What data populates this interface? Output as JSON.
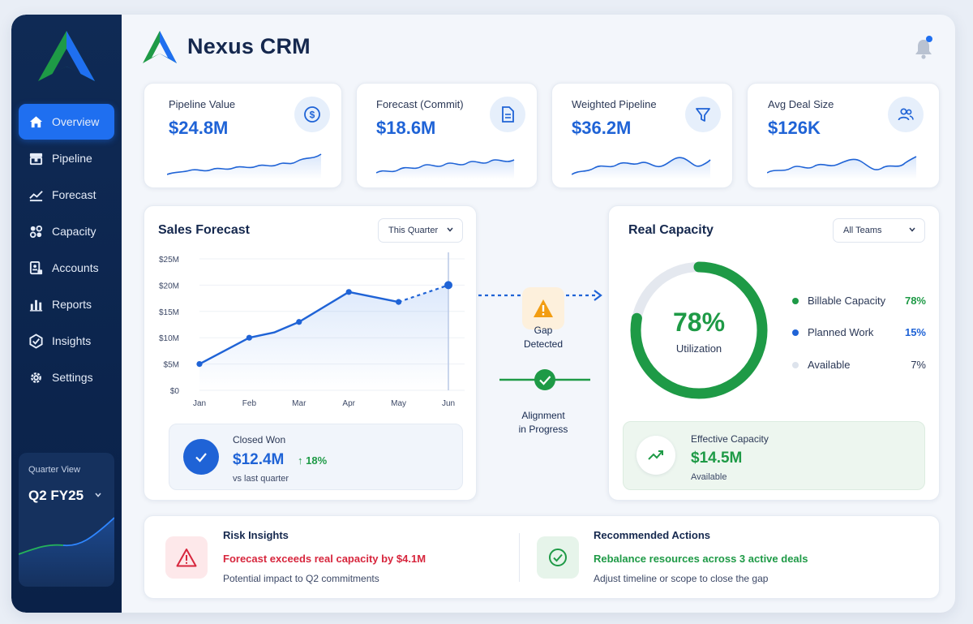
{
  "app": {
    "brand": "Nexus CRM"
  },
  "sidebar": {
    "items": [
      {
        "label": "Overview",
        "icon": "home-icon",
        "active": true
      },
      {
        "label": "Pipeline",
        "icon": "pipeline-icon"
      },
      {
        "label": "Forecast",
        "icon": "trend-line-icon"
      },
      {
        "label": "Capacity",
        "icon": "capacity-icon"
      },
      {
        "label": "Accounts",
        "icon": "accounts-icon"
      },
      {
        "label": "Reports",
        "icon": "bar-chart-icon"
      },
      {
        "label": "Insights",
        "icon": "insights-icon"
      },
      {
        "label": "Settings",
        "icon": "gear-icon"
      }
    ],
    "quarter_view": {
      "label": "Quarter View",
      "value": "Q2 FY25"
    }
  },
  "kpis": [
    {
      "label": "Pipeline Value",
      "value": "$24.8M",
      "icon": "dollar-icon"
    },
    {
      "label": "Forecast (Commit)",
      "value": "$18.6M",
      "icon": "document-icon"
    },
    {
      "label": "Weighted Pipeline",
      "value": "$36.2M",
      "icon": "funnel-icon"
    },
    {
      "label": "Avg Deal Size",
      "value": "$126K",
      "icon": "users-icon"
    }
  ],
  "sales_forecast": {
    "title": "Sales Forecast",
    "period": "This Quarter",
    "closed_won": {
      "label": "Closed Won",
      "value": "$12.4M",
      "delta": "18%",
      "sub": "vs last quarter"
    }
  },
  "connector": {
    "gap_label_1": "Gap",
    "gap_label_2": "Detected",
    "align_label_1": "Alignment",
    "align_label_2": "in Progress"
  },
  "real_capacity": {
    "title": "Real Capacity",
    "filter": "All Teams",
    "utilization_value": "78%",
    "utilization_label": "Utilization",
    "legend": [
      {
        "label": "Billable Capacity",
        "value": "78%",
        "color": "#1e9a46"
      },
      {
        "label": "Planned Work",
        "value": "15%",
        "color": "#1f63d6"
      },
      {
        "label": "Available",
        "value": "7%",
        "color": "#dde3ec"
      }
    ],
    "effective": {
      "label": "Effective Capacity",
      "value": "$14.5M",
      "sub": "Available"
    }
  },
  "risk": {
    "title": "Risk Insights",
    "line": "Forecast exceeds real capacity by $4.1M",
    "sub": "Potential impact to Q2 commitments"
  },
  "actions": {
    "title": "Recommended Actions",
    "line": "Rebalance resources across 3 active deals",
    "sub": "Adjust timeline or scope to close the gap"
  },
  "colors": {
    "accent": "#1f6ff0",
    "sidebar": "#0f2a55",
    "green": "#1e9a46",
    "red": "#d7263d",
    "orange": "#f29d12"
  },
  "chart_data": {
    "type": "line",
    "categories": [
      "Jan",
      "Feb",
      "Mar",
      "Apr",
      "May",
      "Jun"
    ],
    "x": [
      1,
      2,
      2.5,
      3,
      4,
      5,
      6
    ],
    "y_ticks": [
      "$0",
      "$5M",
      "$10M",
      "$15M",
      "$20M",
      "$25M"
    ],
    "ylim": [
      0,
      25
    ],
    "series": [
      {
        "values": [
          5,
          10,
          11,
          13,
          18.7,
          16.8,
          20
        ],
        "projected_from_index": 5
      }
    ],
    "grid": true
  }
}
